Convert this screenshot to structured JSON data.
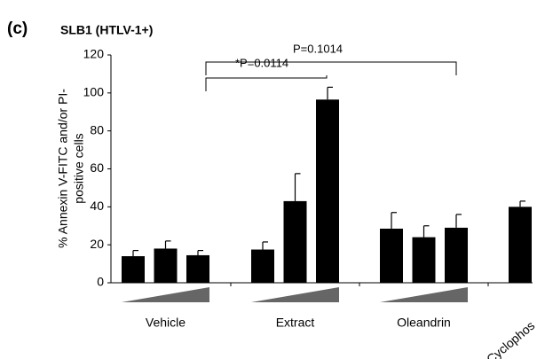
{
  "chart_data": {
    "type": "bar",
    "panel_label": "(c)",
    "title": "SLB1 (HTLV-1+)",
    "ylabel": [
      "% Annexin V-FITC and/or PI-",
      "positive cells"
    ],
    "groups": [
      {
        "name": "Vehicle",
        "values": [
          14,
          18,
          14.5
        ],
        "errors": [
          3,
          4,
          2.5
        ]
      },
      {
        "name": "Extract",
        "values": [
          17.5,
          43,
          96.5
        ],
        "errors": [
          4,
          14.5,
          6.5
        ]
      },
      {
        "name": "Oleandrin",
        "values": [
          28.5,
          24,
          29
        ],
        "errors": [
          8.5,
          6,
          7
        ]
      },
      {
        "name": "Cyclophos",
        "values": [
          40
        ],
        "errors": [
          3
        ]
      }
    ],
    "color": "#000000",
    "ylim": [
      0,
      120
    ],
    "yticks": [
      0,
      20,
      40,
      60,
      80,
      100,
      120
    ],
    "annotations": [
      "*P=0.0114",
      "P=0.1014"
    ]
  }
}
